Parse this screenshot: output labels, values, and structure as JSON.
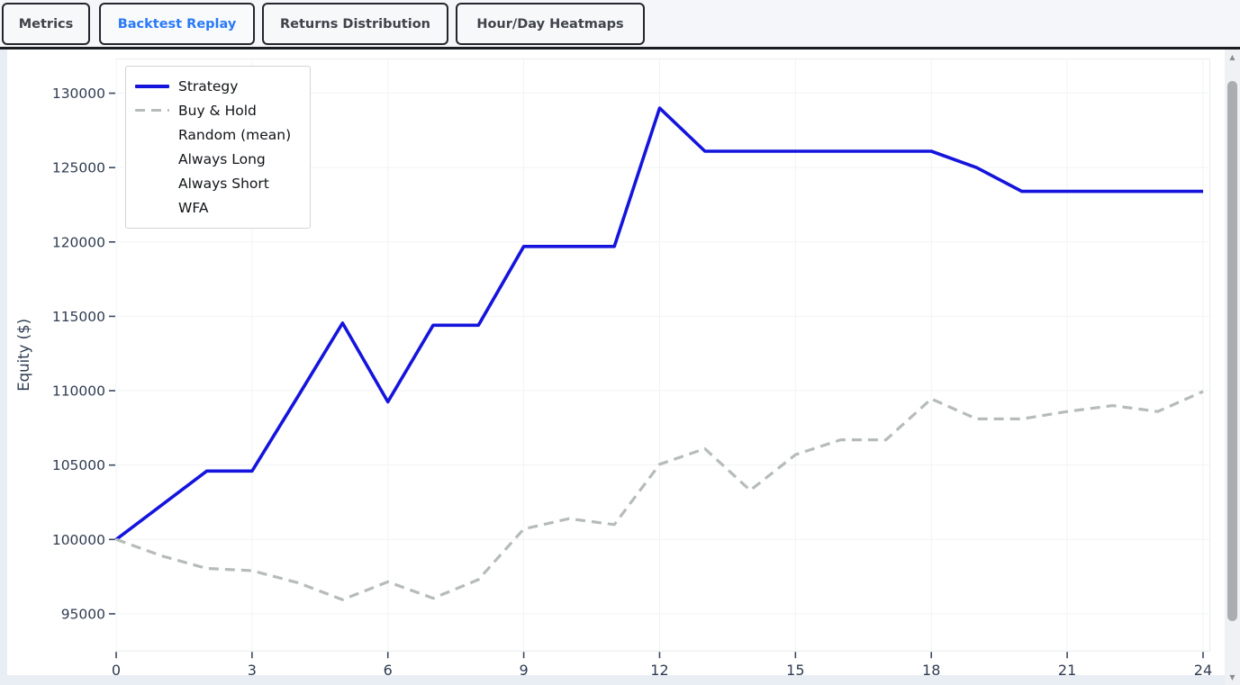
{
  "tabs": {
    "items": [
      {
        "label": "Metrics",
        "active": false
      },
      {
        "label": "Backtest Replay",
        "active": true
      },
      {
        "label": "Returns Distribution",
        "active": false
      },
      {
        "label": "Hour/Day Heatmaps",
        "active": false
      }
    ]
  },
  "legend": {
    "items": [
      {
        "label": "Strategy",
        "swatch": "solid-blue-line"
      },
      {
        "label": "Buy & Hold",
        "swatch": "dashed-gray-line"
      },
      {
        "label": "Random (mean)",
        "swatch": "none"
      },
      {
        "label": "Always Long",
        "swatch": "none"
      },
      {
        "label": "Always Short",
        "swatch": "none"
      },
      {
        "label": "WFA",
        "swatch": "none"
      }
    ]
  },
  "chart_data": {
    "type": "line",
    "title": "",
    "xlabel": "",
    "ylabel": "Equity ($)",
    "x": [
      0,
      1,
      2,
      3,
      4,
      5,
      6,
      7,
      8,
      9,
      10,
      11,
      12,
      13,
      14,
      15,
      16,
      17,
      18,
      19,
      20,
      21,
      22,
      23,
      24
    ],
    "series": [
      {
        "name": "Strategy",
        "color": "#1414dd",
        "style": "solid",
        "values": [
          100000,
          102300,
          104600,
          104600,
          109550,
          114550,
          109250,
          114400,
          114400,
          119700,
          119700,
          119700,
          129000,
          126100,
          126100,
          126100,
          126100,
          126100,
          126100,
          125000,
          123400,
          123400,
          123400,
          123400,
          123400
        ]
      },
      {
        "name": "Buy & Hold",
        "color": "#b6bcb9",
        "style": "dashed",
        "values": [
          100000,
          98900,
          98050,
          97900,
          97100,
          95950,
          97150,
          96050,
          97300,
          100700,
          101400,
          101000,
          105050,
          106100,
          103300,
          105700,
          106700,
          106700,
          109450,
          108100,
          108100,
          108600,
          109000,
          108600,
          109950
        ]
      }
    ],
    "legend_only_series": [
      "Random (mean)",
      "Always Long",
      "Always Short",
      "WFA"
    ],
    "xticks": [
      0,
      3,
      6,
      9,
      12,
      15,
      18,
      21,
      24
    ],
    "yticks": [
      95000,
      100000,
      105000,
      110000,
      115000,
      120000,
      125000,
      130000
    ],
    "xlim": [
      0,
      24.15
    ],
    "ylim": [
      92500,
      132300
    ],
    "grid": true,
    "legend_position": "upper left"
  },
  "colors": {
    "accent_blue_line": "#1414dd",
    "gray_dashed_line": "#b6bcb9",
    "active_tab_text": "#2979f7",
    "tick_text": "#2f3c52",
    "gridline": "#f2f3f6",
    "page_background": "#e9edf4",
    "panel_background": "#ffffff"
  },
  "icons": {
    "scroll_up": "▲",
    "scroll_down": "▼"
  }
}
